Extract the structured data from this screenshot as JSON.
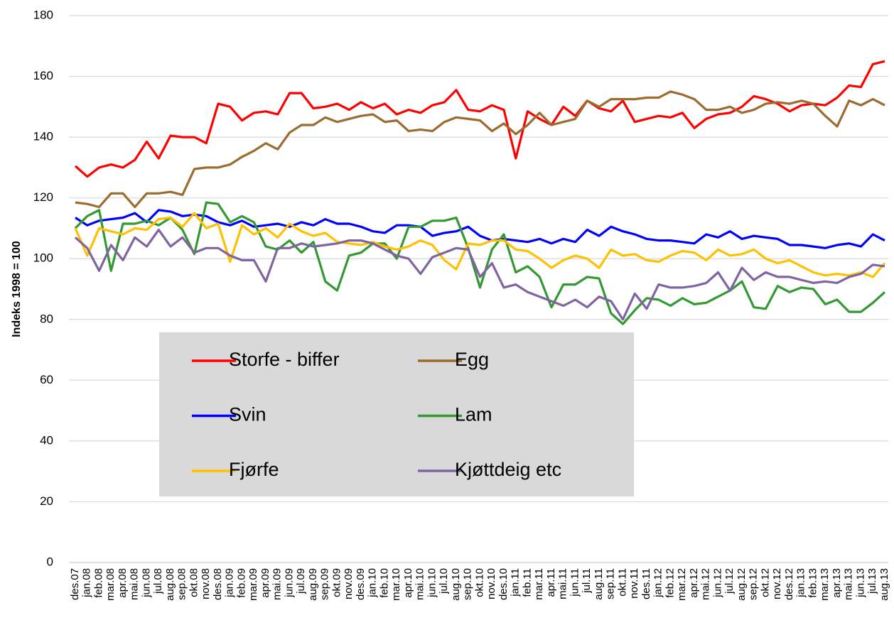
{
  "chart_data": {
    "type": "line",
    "y_label": "Indeks 1998 = 100",
    "categories": [
      "des.07",
      "jan.08",
      "feb.08",
      "mar.08",
      "apr.08",
      "mai.08",
      "jun.08",
      "jul.08",
      "aug.08",
      "sep.08",
      "okt.08",
      "nov.08",
      "des.08",
      "jan.09",
      "feb.09",
      "mar.09",
      "apr.09",
      "mai.09",
      "jun.09",
      "jul.09",
      "aug.09",
      "sep.09",
      "okt.09",
      "nov.09",
      "des.09",
      "jan.10",
      "feb.10",
      "mar.10",
      "apr.10",
      "mai.10",
      "jun.10",
      "jul.10",
      "aug.10",
      "sep.10",
      "okt.10",
      "nov.10",
      "des.10",
      "jan.11",
      "feb.11",
      "mar.11",
      "apr.11",
      "mai.11",
      "jun.11",
      "jul.11",
      "aug.11",
      "sep.11",
      "okt.11",
      "nov.11",
      "des.11",
      "jan.12",
      "feb.12",
      "mar.12",
      "apr.12",
      "mai.12",
      "jun.12",
      "jul.12",
      "aug.12",
      "sep.12",
      "okt.12",
      "nov.12",
      "des.12",
      "jan.13",
      "feb.13",
      "mar.13",
      "apr.13",
      "mai.13",
      "jun.13",
      "jul.13",
      "aug.13"
    ],
    "series": [
      {
        "name": "Storfe - biffer",
        "color": "#ff0000",
        "values": [
          130.5,
          127,
          130,
          131,
          130,
          132.5,
          138.5,
          133,
          140.5,
          140,
          140,
          138,
          151,
          150,
          145.5,
          148,
          148.5,
          147.5,
          154.5,
          154.5,
          149.5,
          150,
          151,
          149,
          151.5,
          149.5,
          151,
          147.5,
          149,
          148,
          150.5,
          151.5,
          155.5,
          149,
          148.5,
          150.5,
          149,
          133,
          148.5,
          146,
          144,
          150,
          147,
          152,
          149.5,
          148.5,
          152,
          145,
          146,
          147,
          146.5,
          148,
          143,
          146,
          147.5,
          148,
          150,
          153.5,
          152.5,
          151,
          148.5,
          150.5,
          151,
          150.5,
          153,
          157,
          156.5,
          164,
          165
        ]
      },
      {
        "name": "Egg",
        "color": "#9c6b30",
        "values": [
          118.5,
          118,
          117,
          121.5,
          121.5,
          117,
          121.5,
          121.5,
          122,
          121,
          129.5,
          130,
          130,
          131,
          133.5,
          135.5,
          138,
          136,
          141.5,
          144,
          144,
          146.5,
          145,
          146,
          147,
          147.5,
          145,
          145.5,
          142,
          142.5,
          142,
          145,
          146.5,
          146,
          145.5,
          142,
          144.5,
          141,
          144,
          148,
          144,
          145,
          146,
          152,
          150,
          152.5,
          152.5,
          152.5,
          153,
          153,
          155,
          154,
          152.5,
          149,
          149,
          150,
          148,
          149,
          151,
          151.5,
          151,
          152,
          151,
          147,
          143.5,
          152,
          150.5,
          152.5,
          150.5
        ]
      },
      {
        "name": "Svin",
        "color": "#0000ff",
        "values": [
          113.5,
          111,
          112.5,
          113,
          113.5,
          115,
          112,
          116,
          115.5,
          114,
          114.5,
          114,
          112,
          111,
          112.5,
          110.5,
          111,
          111.5,
          110.5,
          112,
          111,
          113,
          111.5,
          111.5,
          110.5,
          109,
          108.5,
          111,
          111,
          110.5,
          107.5,
          108.5,
          109,
          110.5,
          107.5,
          106,
          106.5,
          106,
          105.5,
          106.5,
          105,
          106.5,
          105.5,
          109.5,
          107.5,
          110.5,
          109,
          108,
          106.5,
          106,
          106,
          105.5,
          105,
          108,
          107,
          109,
          106.5,
          107.5,
          107,
          106.5,
          104.5,
          104.5,
          104,
          103.5,
          104.5,
          105,
          104,
          108,
          106
        ]
      },
      {
        "name": "Lam",
        "color": "#339933",
        "values": [
          110,
          114,
          116,
          96,
          111.5,
          111.5,
          112.5,
          111,
          113.5,
          109.5,
          101.5,
          118.5,
          118,
          112,
          114,
          112,
          104,
          103,
          106,
          102,
          105.5,
          92.5,
          89.5,
          101,
          102,
          105,
          105,
          100,
          110.5,
          110.5,
          112.5,
          112.5,
          113.5,
          103.5,
          90.5,
          103,
          108,
          95.5,
          97.5,
          94,
          84,
          91.5,
          91.5,
          94,
          93.5,
          82,
          78.5,
          83,
          87,
          86.5,
          84.5,
          87,
          85,
          85.5,
          87.5,
          89.5,
          92.5,
          84,
          83.5,
          91,
          89,
          90.5,
          90,
          85,
          86.5,
          82.5,
          82.5,
          85.5,
          89
        ]
      },
      {
        "name": "Fjørfe",
        "color": "#ffc000",
        "values": [
          110,
          101,
          110,
          109,
          108,
          110,
          109.5,
          113,
          113.5,
          110.5,
          115,
          110,
          111.5,
          99,
          111,
          108,
          110,
          107,
          111.5,
          109,
          107.5,
          108.5,
          105.5,
          105,
          104.5,
          105.5,
          104,
          103,
          104,
          106,
          104.5,
          99.5,
          96.5,
          105,
          104.5,
          106,
          106,
          103,
          102.5,
          100,
          97,
          99.5,
          101,
          100,
          97,
          103,
          101,
          101.5,
          99.5,
          99,
          101,
          102.5,
          102,
          99.5,
          103,
          101,
          101.5,
          103,
          100,
          98.5,
          99.5,
          97.5,
          95.5,
          94.5,
          95,
          94.5,
          95.5,
          94,
          98.5
        ]
      },
      {
        "name": "Kjøttdeig etc",
        "color": "#8064a2",
        "values": [
          107,
          103.5,
          96,
          104.5,
          99.5,
          107,
          104,
          109.5,
          104,
          107,
          102,
          103.5,
          103.5,
          101,
          99.5,
          99.5,
          92.5,
          103.5,
          103.5,
          105,
          104,
          104.5,
          105,
          106,
          106,
          105,
          103,
          101,
          100,
          95,
          100.5,
          102,
          103.5,
          103,
          94,
          98.5,
          90.5,
          91.5,
          89,
          87.5,
          86,
          84.5,
          86.5,
          84,
          87.5,
          86,
          80,
          88.5,
          83.5,
          91.5,
          90.5,
          90.5,
          91,
          92,
          95.5,
          89.5,
          97,
          93,
          95.5,
          94,
          94,
          93,
          92,
          92.5,
          92,
          94,
          95,
          98,
          97.5
        ]
      }
    ],
    "ylim": [
      0,
      180
    ],
    "yticks": [
      0,
      20,
      40,
      60,
      80,
      100,
      120,
      140,
      160,
      180
    ],
    "grid": true,
    "legend": "inside-bottom-left"
  }
}
